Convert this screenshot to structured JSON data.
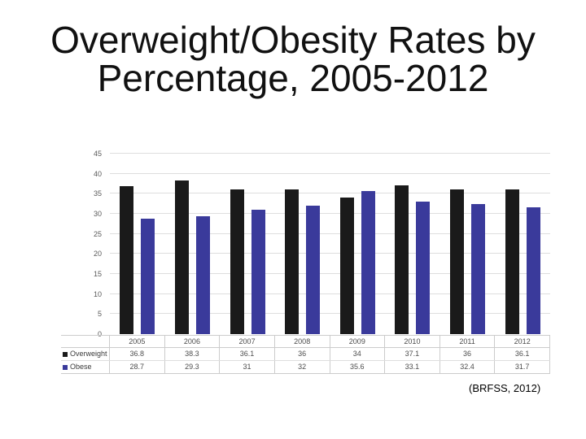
{
  "slide": {
    "title_line1": "Overweight/Obesity Rates by",
    "title_line2": "Percentage, 2005-2012",
    "citation": "(BRFSS, 2012)"
  },
  "chart_data": {
    "type": "bar",
    "title": "Overweight/Obesity Rates by Percentage, 2005-2012",
    "xlabel": "",
    "ylabel": "",
    "categories": [
      "2005",
      "2006",
      "2007",
      "2008",
      "2009",
      "2010",
      "2011",
      "2012"
    ],
    "series": [
      {
        "name": "Overweight",
        "color": "#1a1a1a",
        "values": [
          36.8,
          38.3,
          36.1,
          36,
          34,
          37.1,
          36,
          36.1
        ]
      },
      {
        "name": "Obese",
        "color": "#3a3a9b",
        "values": [
          28.7,
          29.3,
          31,
          32,
          35.6,
          33.1,
          32.4,
          31.7
        ]
      }
    ],
    "ylim": [
      0,
      45
    ],
    "yticks": [
      0,
      5,
      10,
      15,
      20,
      25,
      30,
      35,
      40,
      45
    ],
    "grid": true,
    "legend_position": "left-of-data-table",
    "data_table_shown": true,
    "colors": {
      "gridline": "#dedede",
      "table_border": "#cccccc",
      "axis_text": "#595959",
      "table_text": "#4d4d4d"
    }
  }
}
